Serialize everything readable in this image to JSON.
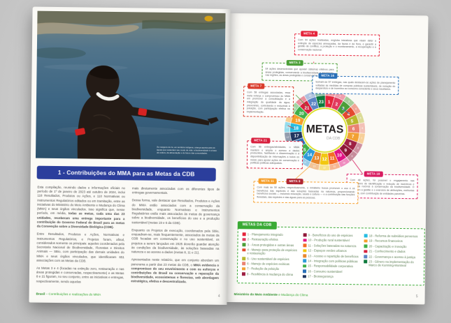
{
  "left_page": {
    "photo_caption": "Às margens do rio, em território indígena, criança aponta para as águas que sustentam seu modo de vida: a biodiversidade é a base da cultura, da alimentação e do futuro das comunidades.",
    "section_title": "1 - Contribuições do MMA para as Metas da CDB",
    "body": {
      "c1p1": "Esta compilação, reunindo dados e informações oficiais no período de 1º de janeiro de 2023 até outubro de 2024, inclui 118 Resultados, Produtos ou Ações, e 110 Normativas ou Instrumentos Regulatórios editados ou em tramitação, entre as iniciativas do Ministério do Meio Ambiente e Mudança do Clima (MMA) e seus órgãos vinculados. Isso significa que, nesse período, em média, ",
      "c1p1_bold": "todas as metas, cada uma das 23 unidades, receberam uma entrega importante para a contribuição do Governo Federal do Brasil para as metas da Convenção sobre a Diversidade Biológica (CDB).",
      "c1p2": "Entre Resultados, Produtos e Ações, Normativas e Instrumentos Regulatórios, e Projetos foram, afinal, considerados somente os principais: aqueles coordenados pela Secretaria Nacional de Biodiversidade, Florestas e Direitos Animais — SBio, com participação das demais unidades do MMA e seus órgãos vinculados, que identificaram 651 associações com as Metas da CDB.",
      "c1p3": "As Metas 3 e 4 (focadas na extinção zero, restauração e nas áreas protegidas e conservadas, respectivamente) e as Metas 8 e 21 figuram, no seu conjunto, entre as iniciativas e entregas, respectivamente, sendo aquelas",
      "c2p1": "mais diretamente associadas com os diferentes tipos de entregas governamentais.",
      "c2p2": "Dessa forma, vale destacar que Resultados, Produtos e Ações do MMA estão associados com a conservação da biodiversidade, enquanto Normativas e Instrumentos Regulatórios estão mais associados às metas de governança sobre a biodiversidade, os benefícios do uso e a produção sustentável (metas 19 e 6 da CDB).",
      "c2p3": "Enquanto os Projetos de execução, coordenados pela SBio, enquadram-se, mais frequentemente, associados às metas da CDB focadas em conservação e no uso sustentável, os projetos a serem lançados em 2025 deverão guardar atenção às condições da biodiversidade, às soluções baseadas na natureza e ao acesso a dados (metas 8, 11 e 21).",
      "c2p4": "Apresentados neste relatório, que em conjunto abordam um panorama a partir das 23 metas da CDB, o ",
      "c2p4_bold": "MMA evidencia o compromisso do seu envolvimento e com os esforços e contribuições do Brasil na conservação e reparação da biodiversidade, ecossistemas e florestas, sob abordagem estratégica, efetiva e descentralizada."
    },
    "footer": {
      "left_bold": "Brasil",
      "left_rest": " – Contribuições e realizações do MMA",
      "page": "4"
    }
  },
  "right_page": {
    "wheel": {
      "title": "METAS",
      "subtitle": "DA CDB",
      "segments": [
        {
          "n": 1,
          "color": "#e5243b"
        },
        {
          "n": 2,
          "color": "#e23a5e"
        },
        {
          "n": 3,
          "color": "#4c9f38"
        },
        {
          "n": 4,
          "color": "#e4492f"
        },
        {
          "n": 5,
          "color": "#b8b92e"
        },
        {
          "n": 6,
          "color": "#ea8372"
        },
        {
          "n": 7,
          "color": "#f2a134"
        },
        {
          "n": 8,
          "color": "#9e2043"
        },
        {
          "n": 9,
          "color": "#8f1838"
        },
        {
          "n": 10,
          "color": "#e11484"
        },
        {
          "n": 11,
          "color": "#f36d25"
        },
        {
          "n": 12,
          "color": "#f2c80f"
        },
        {
          "n": 13,
          "color": "#e8882d"
        },
        {
          "n": 14,
          "color": "#2d9bd8"
        },
        {
          "n": 15,
          "color": "#3eb049"
        },
        {
          "n": 16,
          "color": "#2a70b8"
        },
        {
          "n": 17,
          "color": "#20365f"
        },
        {
          "n": 18,
          "color": "#26bde2"
        },
        {
          "n": 19,
          "color": "#f59e2a"
        },
        {
          "n": 20,
          "color": "#3faf49"
        },
        {
          "n": 21,
          "color": "#d81f3d"
        },
        {
          "n": 22,
          "color": "#5b84c4"
        },
        {
          "n": 23,
          "color": "#0e7a3c"
        }
      ]
    },
    "callouts": {
      "meta4": {
        "tag": "META 4",
        "text": "Com 94 ações realizadas, engloba iniciativas que visam deter a extinção de espécies ameaçadas, da fauna e da flora, e garantir a gestão de conflitos, a proteção e o monitoramento, a recuperação e a conservação nacional."
      },
      "meta3": {
        "tag": "META 3",
        "text": "64 ações desenvolvidas que apoiam sistemas efetivos para áreas protegidas, conservando a biodiversidade e ampliando, nas regiões, as áreas protegidas e conservadas."
      },
      "meta16": {
        "tag": "META 16",
        "text": "Somam-se 57 entregas, nas quais destacam-se ações de planejamento voltadas às medidas de compras públicas sustentáveis, de redução do desperdício e de incentivo ao consumo consciente e seus resultados."
      },
      "meta7": {
        "tag": "META 7",
        "text": "Com 58 entregas associadas, essa meta reforça o compromisso do MMA em promover a consolidação e a integração da qualidade da água, prevenindo, controlando e reduzindo a poluição, com participação efetiva na implementação."
      },
      "meta21": {
        "tag": "META 21",
        "text": "Com 56 entregas/atividades, o MMA mantém e amplia o acesso a dados produzidos, facilitando a disseminação e a disponibilização de informações a todos os níveis para apoiar ações de conservação e políticas públicas adequadas."
      },
      "meta18": {
        "tag": "META 18",
        "text": "Com 48 ações, foi possível o engajamento nas abordagens de identificação e redução de incentivos e subsídios nocivos à conservação da biodiversidade. O MMA tem a gestão e o exercício de atribuições, melhorias e planos, com contribuição de entidades parceiras."
      },
      "meta11_9": {
        "tag1": "META 11",
        "tag2": "META 9",
        "text": "Com mais de 50 ações, respectivamente, o ministério busca promover o uso e os benefícios das espécies e das soluções baseadas na natureza, proporcionando benefícios sociais — incluindo educação, saúde e cultura — e a contribuição das funções florestais, das espécies e das águas para as pessoas."
      }
    },
    "legend": {
      "title": "METAS DA CDB",
      "items": [
        {
          "n": 1,
          "label": "Planejamento integrado",
          "color": "#e5243b"
        },
        {
          "n": 2,
          "label": "Restauração efetiva",
          "color": "#e23a5e"
        },
        {
          "n": 3,
          "label": "Áreas protegidas e outras áreas",
          "color": "#4c9f38"
        },
        {
          "n": 4,
          "label": "Manejo para proteção de espécies e restauração",
          "color": "#e4492f"
        },
        {
          "n": 5,
          "label": "Uso sustentável de espécies",
          "color": "#b8b92e"
        },
        {
          "n": 6,
          "label": "Manejo de espécies exóticas",
          "color": "#ea8372"
        },
        {
          "n": 7,
          "label": "Redução da poluição",
          "color": "#f2a134"
        },
        {
          "n": 8,
          "label": "Resiliência à mudança do clima",
          "color": "#9e2043"
        },
        {
          "n": 9,
          "label": "Benefícios do uso de espécies",
          "color": "#8f1838"
        },
        {
          "n": 10,
          "label": "Produção rural sustentável",
          "color": "#e11484"
        },
        {
          "n": 11,
          "label": "Soluções baseadas na natureza",
          "color": "#f36d25"
        },
        {
          "n": 12,
          "label": "Espaços verdes urbanos",
          "color": "#f2c80f"
        },
        {
          "n": 13,
          "label": "Acesso e repartição de benefícios",
          "color": "#e8882d"
        },
        {
          "n": 14,
          "label": "Integração com políticas públicas",
          "color": "#2d9bd8"
        },
        {
          "n": 15,
          "label": "Responsabilidade corporativa",
          "color": "#3eb049"
        },
        {
          "n": 16,
          "label": "Consumo sustentável",
          "color": "#2a70b8"
        },
        {
          "n": 17,
          "label": "Biossegurança",
          "color": "#20365f"
        },
        {
          "n": 18,
          "label": "Reforma de subsídios perversos",
          "color": "#26bde2"
        },
        {
          "n": 19,
          "label": "Recursos financeiros",
          "color": "#f59e2a"
        },
        {
          "n": 20,
          "label": "Capacitação e inovação",
          "color": "#3faf49"
        },
        {
          "n": 21,
          "label": "Conhecimento e dados",
          "color": "#d81f3d"
        },
        {
          "n": 22,
          "label": "Governança e acesso à justiça",
          "color": "#5b84c4"
        },
        {
          "n": 23,
          "label": "Gênero na implementação do Marco de Kunming-Montreal",
          "color": "#0e7a3c"
        }
      ]
    },
    "footer": {
      "left_bold": "Ministério do Meio Ambiente",
      "left_rest": " e Mudança do Clima",
      "page": "5"
    }
  },
  "chart_data": {
    "type": "pie",
    "title": "METAS DA CDB",
    "categories": [
      1,
      2,
      3,
      4,
      5,
      6,
      7,
      8,
      9,
      10,
      11,
      12,
      13,
      14,
      15,
      16,
      17,
      18,
      19,
      20,
      21,
      22,
      23
    ],
    "values": [
      1,
      1,
      1,
      1,
      1,
      1,
      1,
      1,
      1,
      1,
      1,
      1,
      1,
      1,
      1,
      1,
      1,
      1,
      1,
      1,
      1,
      1,
      1
    ],
    "note": "Donut wheel of the 23 CDB (Kunming-Montreal) targets; highlighted deliveries: Meta 4 = 94 ações, Meta 3 = 64 ações, Meta 16 = 57 entregas, Meta 7 = 58 entregas, Meta 21 = 56 entregas, Meta 18 = 48 ações, Metas 11 e 9 = mais de 50 ações"
  },
  "colors": {
    "header_blue": "#2b3e9c",
    "footer_green": "#3aaa35",
    "page_background": "#fbfaf6",
    "desk_background": "#cdcdcd"
  }
}
